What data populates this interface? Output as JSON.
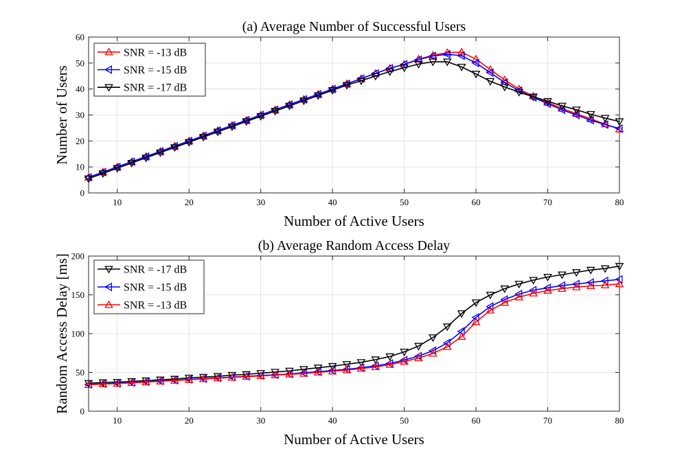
{
  "chart_data": [
    {
      "id": "a",
      "type": "line",
      "title": "(a) Average Number of Successful Users",
      "xlabel": "Number of Active Users",
      "ylabel": "Number of Users",
      "xlim": [
        6,
        80
      ],
      "ylim": [
        0,
        60
      ],
      "xticks": [
        10,
        20,
        30,
        40,
        50,
        60,
        70,
        80
      ],
      "yticks": [
        0,
        10,
        20,
        30,
        40,
        50,
        60
      ],
      "grid": true,
      "legend_position": "top-left",
      "x": [
        6,
        8,
        10,
        12,
        14,
        16,
        18,
        20,
        22,
        24,
        26,
        28,
        30,
        32,
        34,
        36,
        38,
        40,
        42,
        44,
        46,
        48,
        50,
        52,
        54,
        56,
        58,
        60,
        62,
        64,
        66,
        68,
        70,
        72,
        74,
        76,
        78,
        80
      ],
      "series": [
        {
          "name": "SNR = -13 dB",
          "color": "#ff0000",
          "marker": "triangle-up",
          "values": [
            6,
            8,
            10,
            12,
            14,
            16,
            18,
            20,
            22,
            24,
            26,
            28,
            30,
            32,
            34,
            36,
            38,
            40,
            42,
            44,
            46,
            48,
            49.5,
            51.5,
            53,
            54,
            54.2,
            51.5,
            47.5,
            43.5,
            40,
            37.2,
            34.8,
            32.5,
            30.5,
            28.5,
            26.5,
            24.5
          ]
        },
        {
          "name": "SNR = -15 dB",
          "color": "#0000ff",
          "marker": "triangle-left",
          "values": [
            6,
            8,
            10,
            12,
            14,
            16,
            18,
            20,
            22,
            24,
            26,
            28,
            30,
            32,
            34,
            36,
            38,
            40,
            42,
            44,
            46,
            48,
            49.5,
            51.3,
            52.7,
            53.4,
            52.8,
            50,
            46.3,
            42.5,
            39.4,
            36.8,
            34.3,
            32,
            30,
            28,
            26.3,
            24.8
          ]
        },
        {
          "name": "SNR = -17 dB",
          "color": "#000000",
          "marker": "triangle-down",
          "values": [
            5.5,
            7.5,
            9.5,
            11.5,
            13.5,
            15.5,
            17.5,
            19.5,
            21.5,
            23.5,
            25.5,
            27.5,
            29.5,
            31.5,
            33.5,
            35.5,
            37.5,
            39.5,
            41.5,
            43.2,
            45,
            46.7,
            48.2,
            49.6,
            50.5,
            50.5,
            48.5,
            45.8,
            43,
            40.8,
            38.8,
            37,
            35.3,
            33.5,
            32,
            30.3,
            28.8,
            27.5
          ]
        }
      ]
    },
    {
      "id": "b",
      "type": "line",
      "title": "(b) Average Random Access Delay",
      "xlabel": "Number of Active Users",
      "ylabel": "Random Access Delay [ms]",
      "xlim": [
        6,
        80
      ],
      "ylim": [
        0,
        200
      ],
      "xticks": [
        10,
        20,
        30,
        40,
        50,
        60,
        70,
        80
      ],
      "yticks": [
        0,
        50,
        100,
        150,
        200
      ],
      "grid": true,
      "legend_position": "top-left",
      "x": [
        6,
        8,
        10,
        12,
        14,
        16,
        18,
        20,
        22,
        24,
        26,
        28,
        30,
        32,
        34,
        36,
        38,
        40,
        42,
        44,
        46,
        48,
        50,
        52,
        54,
        56,
        58,
        60,
        62,
        64,
        66,
        68,
        70,
        72,
        74,
        76,
        78,
        80
      ],
      "series": [
        {
          "name": "SNR = -17 dB",
          "color": "#000000",
          "marker": "triangle-down",
          "values": [
            36,
            37,
            37.5,
            38.5,
            39.5,
            40.5,
            41.5,
            43,
            44,
            45,
            46.5,
            47.5,
            49,
            50.5,
            52,
            54,
            56,
            58,
            60.5,
            63,
            66.5,
            70.5,
            76.5,
            84,
            95,
            109,
            126,
            140,
            150,
            158,
            164,
            169,
            173,
            176,
            179,
            182,
            184,
            187
          ]
        },
        {
          "name": "SNR = -15 dB",
          "color": "#0000ff",
          "marker": "triangle-left",
          "values": [
            34.5,
            35.5,
            36,
            37,
            38,
            39,
            40,
            41,
            42,
            43,
            44,
            45,
            46,
            47,
            48,
            49.5,
            51,
            52.5,
            54,
            56,
            58.5,
            61.5,
            66,
            71,
            78,
            88,
            103,
            121,
            135,
            144,
            151,
            156,
            159,
            162,
            164,
            166,
            168,
            170
          ]
        },
        {
          "name": "SNR = -13 dB",
          "color": "#ff0000",
          "marker": "triangle-up",
          "values": [
            34,
            35,
            35.5,
            36.5,
            37.5,
            38.5,
            39.5,
            40.5,
            41.5,
            42.5,
            43.5,
            44.5,
            45.5,
            46.5,
            47.5,
            48.5,
            50,
            51.5,
            53,
            55,
            57,
            60,
            64,
            68.5,
            74.5,
            83,
            96,
            115,
            130,
            140,
            147,
            152,
            155.5,
            158,
            160,
            161.5,
            162.5,
            164
          ]
        }
      ]
    }
  ]
}
